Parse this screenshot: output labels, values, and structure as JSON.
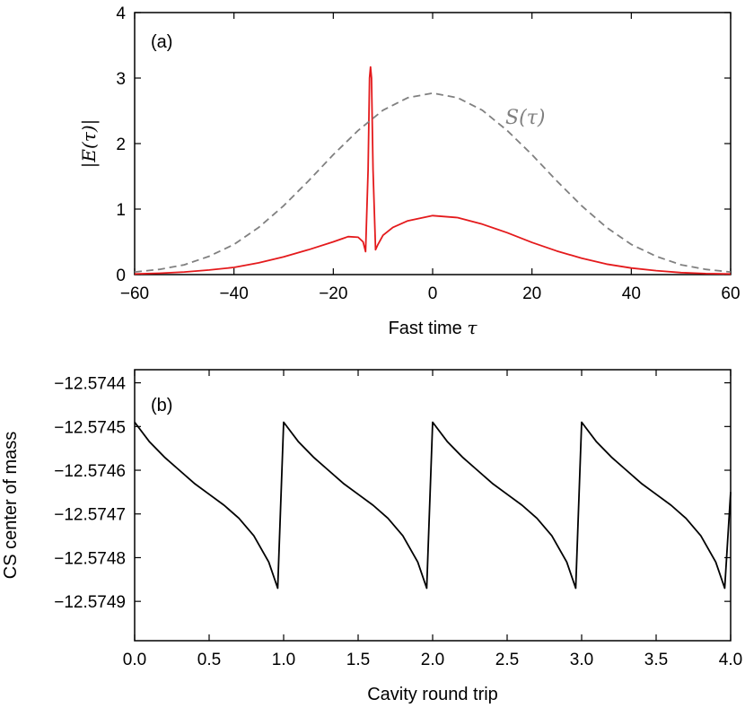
{
  "chart_data": [
    {
      "type": "line",
      "panel_label": "(a)",
      "xlabel_text": "Fast time ",
      "xlabel_symbol": "τ",
      "ylabel": "|E(τ)|",
      "xlim": [
        -60,
        60
      ],
      "ylim": [
        0,
        4
      ],
      "xticks": [
        -60,
        -40,
        -20,
        0,
        20,
        40,
        60
      ],
      "xtick_labels": [
        "−60",
        "−40",
        "−20",
        "0",
        "20",
        "40",
        "60"
      ],
      "yticks": [
        0,
        1,
        2,
        3,
        4
      ],
      "ytick_labels": [
        "0",
        "1",
        "2",
        "3",
        "4"
      ],
      "annotation": "S(τ)",
      "series": [
        {
          "name": "|E(τ)|",
          "color": "#e41a1c",
          "style": "solid",
          "x": [
            -60,
            -55,
            -50,
            -45,
            -40,
            -35,
            -30,
            -25,
            -20,
            -17,
            -15,
            -14,
            -13.5,
            -13,
            -12.7,
            -12.5,
            -12.3,
            -12,
            -11.5,
            -11,
            -10,
            -8,
            -5,
            0,
            5,
            10,
            15,
            20,
            25,
            30,
            35,
            40,
            45,
            50,
            55,
            60
          ],
          "y": [
            0.01,
            0.02,
            0.04,
            0.07,
            0.11,
            0.18,
            0.27,
            0.38,
            0.5,
            0.58,
            0.57,
            0.5,
            0.35,
            1.6,
            3.0,
            3.17,
            3.0,
            1.6,
            0.38,
            0.46,
            0.6,
            0.72,
            0.82,
            0.9,
            0.87,
            0.77,
            0.64,
            0.49,
            0.36,
            0.25,
            0.16,
            0.1,
            0.06,
            0.03,
            0.015,
            0.01
          ]
        },
        {
          "name": "S(τ)",
          "color": "#808080",
          "style": "dashed",
          "x": [
            -60,
            -55,
            -50,
            -45,
            -40,
            -35,
            -30,
            -25,
            -20,
            -15,
            -10,
            -5,
            0,
            5,
            10,
            15,
            20,
            25,
            30,
            35,
            40,
            45,
            50,
            55,
            60
          ],
          "y": [
            0.04,
            0.08,
            0.15,
            0.28,
            0.46,
            0.72,
            1.05,
            1.43,
            1.83,
            2.2,
            2.51,
            2.7,
            2.77,
            2.7,
            2.51,
            2.2,
            1.83,
            1.43,
            1.05,
            0.72,
            0.46,
            0.28,
            0.15,
            0.08,
            0.04
          ]
        }
      ]
    },
    {
      "type": "line",
      "panel_label": "(b)",
      "xlabel": "Cavity round trip",
      "ylabel": "CS center of mass",
      "xlim": [
        0,
        4
      ],
      "ylim": [
        -12.57499,
        -12.57437
      ],
      "xticks": [
        0,
        0.5,
        1,
        1.5,
        2,
        2.5,
        3,
        3.5,
        4
      ],
      "xtick_labels": [
        "0.0",
        "0.5",
        "1.0",
        "1.5",
        "2.0",
        "2.5",
        "3.0",
        "3.5",
        "4.0"
      ],
      "yticks": [
        -12.5744,
        -12.5745,
        -12.5746,
        -12.5747,
        -12.5748,
        -12.5749
      ],
      "ytick_labels": [
        "−12.5744",
        "−12.5745",
        "−12.5746",
        "−12.5747",
        "−12.5748",
        "−12.5749"
      ],
      "series": [
        {
          "name": "CS center of mass",
          "color": "#000000",
          "style": "solid",
          "x": [
            0,
            0.1,
            0.2,
            0.3,
            0.4,
            0.5,
            0.6,
            0.7,
            0.8,
            0.9,
            0.96,
            1.0,
            1.1,
            1.2,
            1.3,
            1.4,
            1.5,
            1.6,
            1.7,
            1.8,
            1.9,
            1.96,
            2.0,
            2.1,
            2.2,
            2.3,
            2.4,
            2.5,
            2.6,
            2.7,
            2.8,
            2.9,
            2.96,
            3.0,
            3.1,
            3.2,
            3.3,
            3.4,
            3.5,
            3.6,
            3.7,
            3.8,
            3.9,
            3.96,
            4.0
          ],
          "y": [
            -12.57449,
            -12.574535,
            -12.57457,
            -12.5746,
            -12.57463,
            -12.574655,
            -12.57468,
            -12.57471,
            -12.57475,
            -12.57481,
            -12.57487,
            -12.57449,
            -12.574535,
            -12.57457,
            -12.5746,
            -12.57463,
            -12.574655,
            -12.57468,
            -12.57471,
            -12.57475,
            -12.57481,
            -12.57487,
            -12.57449,
            -12.574535,
            -12.57457,
            -12.5746,
            -12.57463,
            -12.574655,
            -12.57468,
            -12.57471,
            -12.57475,
            -12.57481,
            -12.57487,
            -12.57449,
            -12.574535,
            -12.57457,
            -12.5746,
            -12.57463,
            -12.574655,
            -12.57468,
            -12.57471,
            -12.57475,
            -12.57481,
            -12.57487,
            -12.57465
          ]
        }
      ]
    }
  ]
}
